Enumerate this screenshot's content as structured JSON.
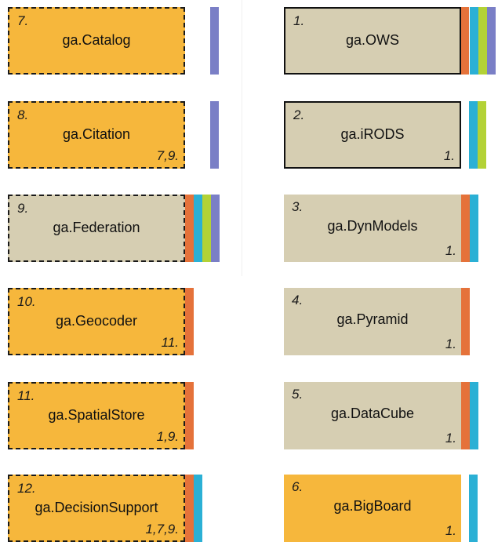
{
  "colors": {
    "orange_fill": "#f6b73c",
    "tan_fill": "#d6ceb2",
    "bar_orange": "#e5723a",
    "bar_blue": "#2bb0d5",
    "bar_green": "#b3d236",
    "bar_purple": "#7a7fc6"
  },
  "left": [
    {
      "num": "7.",
      "name": "ga.Catalog",
      "deps": ""
    },
    {
      "num": "8.",
      "name": "ga.Citation",
      "deps": "7,9."
    },
    {
      "num": "9.",
      "name": "ga.Federation",
      "deps": ""
    },
    {
      "num": "10.",
      "name": "ga.Geocoder",
      "deps": "11."
    },
    {
      "num": "11.",
      "name": "ga.SpatialStore",
      "deps": "1,9."
    },
    {
      "num": "12.",
      "name": "ga.DecisionSupport",
      "deps": "1,7,9."
    }
  ],
  "right": [
    {
      "num": "1.",
      "name": "ga.OWS",
      "deps": ""
    },
    {
      "num": "2.",
      "name": "ga.iRODS",
      "deps": "1."
    },
    {
      "num": "3.",
      "name": "ga.DynModels",
      "deps": "1."
    },
    {
      "num": "4.",
      "name": "ga.Pyramid",
      "deps": "1."
    },
    {
      "num": "5.",
      "name": "ga.DataCube",
      "deps": "1."
    },
    {
      "num": "6.",
      "name": "ga.BigBoard",
      "deps": "1."
    }
  ]
}
